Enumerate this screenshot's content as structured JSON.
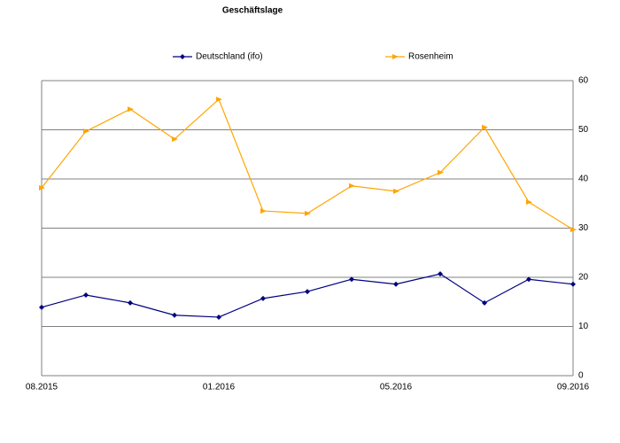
{
  "chart_data": {
    "type": "line",
    "title": "Geschäftslage",
    "categories": [
      "08.2015",
      null,
      null,
      null,
      "01.2016",
      null,
      null,
      null,
      "05.2016",
      null,
      null,
      null,
      "09.2016"
    ],
    "series": [
      {
        "name": "Deutschland (ifo)",
        "color": "#000080",
        "marker": "diamond",
        "values": [
          13.9,
          16.4,
          14.8,
          12.3,
          11.9,
          15.7,
          17.1,
          19.6,
          18.6,
          20.7,
          14.8,
          19.6,
          18.6
        ]
      },
      {
        "name": "Rosenheim",
        "color": "#ffa500",
        "marker": "triangle",
        "values": [
          38.2,
          49.7,
          54.2,
          48.1,
          56.2,
          33.5,
          33.0,
          38.6,
          37.5,
          41.3,
          50.5,
          35.3,
          29.7
        ]
      }
    ],
    "ylim": [
      0,
      60
    ],
    "yticks": [
      0,
      10,
      20,
      30,
      40,
      50,
      60
    ],
    "yaxis_side": "right",
    "grid": true,
    "legend": "top"
  }
}
